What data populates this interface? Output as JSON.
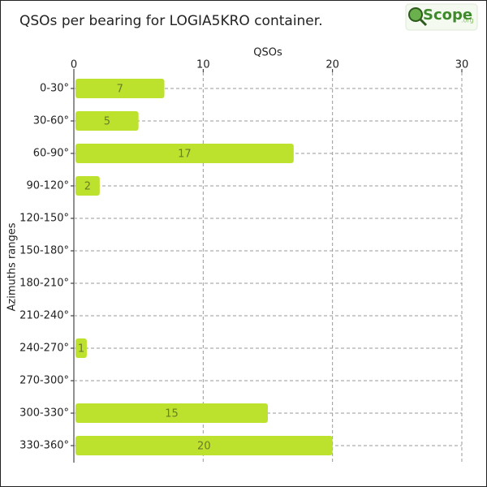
{
  "logo": {
    "name": "Scope",
    "suffix": ".org"
  },
  "chart_data": {
    "type": "bar",
    "orientation": "horizontal",
    "title": "QSOs per bearing for LOGIA5KRO container.",
    "x_label": "QSOs",
    "y_label": "Azimuths ranges",
    "categories": [
      "0-30°",
      "30-60°",
      "60-90°",
      "90-120°",
      "120-150°",
      "150-180°",
      "180-210°",
      "210-240°",
      "240-270°",
      "270-300°",
      "300-330°",
      "330-360°"
    ],
    "values": [
      7,
      5,
      17,
      2,
      0,
      0,
      0,
      0,
      1,
      0,
      15,
      20
    ],
    "color": "#bde22e",
    "xlim": [
      0,
      30
    ],
    "xticks": [
      0,
      10,
      20,
      30
    ],
    "grid": true
  }
}
